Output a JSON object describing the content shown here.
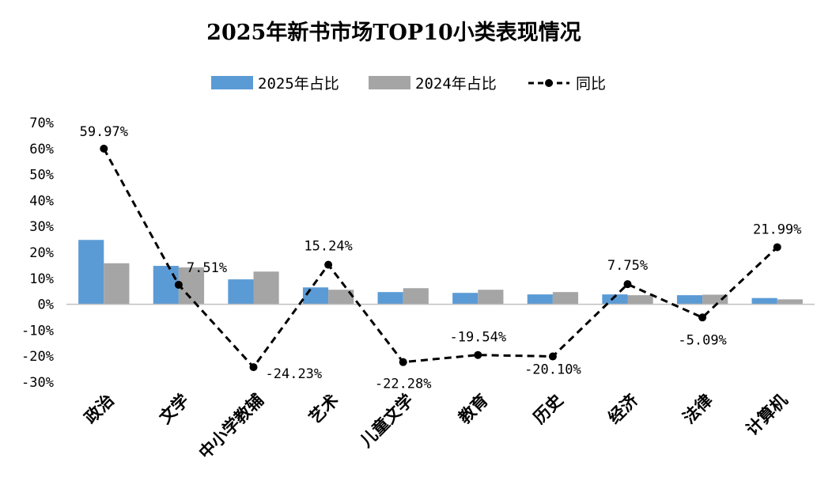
{
  "chart_data": {
    "type": "bar",
    "title": "2025年新书市场TOP10小类表现情况",
    "categories": [
      "政治",
      "文学",
      "中小学教辅",
      "艺术",
      "儿童文学",
      "教育",
      "历史",
      "经济",
      "法律",
      "计算机"
    ],
    "series": [
      {
        "name": "2025年占比",
        "kind": "bar",
        "color": "#5B9BD5",
        "unit": "%",
        "values": [
          24.8,
          14.8,
          9.6,
          6.5,
          4.7,
          4.4,
          3.8,
          3.8,
          3.5,
          2.4
        ]
      },
      {
        "name": "2024年占比",
        "kind": "bar",
        "color": "#A5A5A5",
        "unit": "%",
        "values": [
          15.8,
          14.2,
          12.6,
          5.6,
          6.2,
          5.6,
          4.7,
          3.5,
          3.7,
          1.9
        ]
      },
      {
        "name": "同比",
        "kind": "line",
        "style": "dashed",
        "marker": "circle",
        "color": "#000000",
        "unit": "%",
        "values": [
          59.97,
          7.51,
          -24.23,
          15.24,
          -22.28,
          -19.54,
          -20.1,
          7.75,
          -5.09,
          21.99
        ]
      }
    ],
    "data_labels": [
      "59.97%",
      "7.51%",
      "-24.23%",
      "15.24%",
      "-22.28%",
      "-19.54%",
      "-20.10%",
      "7.75%",
      "-5.09%",
      "21.99%"
    ],
    "y_ticks": [
      "70%",
      "60%",
      "50%",
      "40%",
      "30%",
      "20%",
      "10%",
      "0%",
      "-10%",
      "-20%",
      "-30%"
    ],
    "ylim": [
      -30,
      70
    ],
    "xlabel": "",
    "ylabel": "",
    "grid": false,
    "legend_position": "top"
  }
}
